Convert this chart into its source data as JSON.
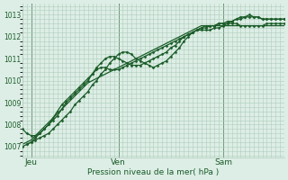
{
  "bg_color": "#ddeee6",
  "grid_color": "#b0ccbb",
  "line_color": "#1a5c28",
  "title": "Pression niveau de la mer( hPa )",
  "ylim": [
    1006.5,
    1013.5
  ],
  "yticks": [
    1007,
    1008,
    1009,
    1010,
    1011,
    1012,
    1013
  ],
  "xlim": [
    0,
    60
  ],
  "day_labels": [
    "Jeu",
    "Ven",
    "Sam"
  ],
  "day_positions": [
    2,
    22,
    46
  ],
  "vline_positions": [
    2,
    22,
    46
  ],
  "series": [
    {
      "x": [
        0,
        1,
        2,
        3,
        4,
        5,
        6,
        7,
        8,
        9,
        10,
        11,
        12,
        13,
        14,
        15,
        16,
        17,
        18,
        19,
        20,
        21,
        22,
        23,
        24,
        25,
        26,
        27,
        28,
        29,
        30,
        31,
        32,
        33,
        34,
        35,
        36,
        37,
        38,
        39,
        40,
        41,
        42,
        43,
        44,
        45,
        46,
        47,
        48,
        49,
        50,
        51,
        52,
        53,
        54,
        55,
        56,
        57,
        58,
        59,
        60
      ],
      "y": [
        1007.1,
        1007.2,
        1007.3,
        1007.5,
        1007.7,
        1007.9,
        1008.1,
        1008.3,
        1008.5,
        1008.7,
        1008.9,
        1009.1,
        1009.3,
        1009.5,
        1009.7,
        1009.9,
        1010.0,
        1010.1,
        1010.2,
        1010.3,
        1010.4,
        1010.5,
        1010.6,
        1010.7,
        1010.8,
        1010.9,
        1011.0,
        1011.1,
        1011.2,
        1011.3,
        1011.4,
        1011.5,
        1011.6,
        1011.7,
        1011.8,
        1011.9,
        1012.0,
        1012.1,
        1012.2,
        1012.3,
        1012.4,
        1012.5,
        1012.5,
        1012.5,
        1012.5,
        1012.5,
        1012.5,
        1012.5,
        1012.5,
        1012.5,
        1012.5,
        1012.5,
        1012.5,
        1012.5,
        1012.5,
        1012.5,
        1012.5,
        1012.5,
        1012.5,
        1012.5,
        1012.5
      ],
      "markers": false,
      "lw": 0.9
    },
    {
      "x": [
        0,
        1,
        2,
        3,
        4,
        5,
        6,
        7,
        8,
        9,
        10,
        11,
        12,
        13,
        14,
        15,
        16,
        17,
        18,
        19,
        20,
        21,
        22,
        23,
        24,
        25,
        26,
        27,
        28,
        29,
        30,
        31,
        32,
        33,
        34,
        35,
        36,
        37,
        38,
        39,
        40,
        41,
        42,
        43,
        44,
        45,
        46,
        47,
        48,
        49,
        50,
        51,
        52,
        53,
        54,
        55,
        56,
        57,
        58,
        59,
        60
      ],
      "y": [
        1007.0,
        1007.1,
        1007.2,
        1007.4,
        1007.6,
        1007.8,
        1008.0,
        1008.3,
        1008.6,
        1008.9,
        1009.1,
        1009.3,
        1009.5,
        1009.7,
        1009.9,
        1010.1,
        1010.3,
        1010.5,
        1010.6,
        1010.6,
        1010.5,
        1010.5,
        1010.5,
        1010.6,
        1010.7,
        1010.8,
        1010.9,
        1011.0,
        1011.1,
        1011.2,
        1011.3,
        1011.4,
        1011.5,
        1011.6,
        1011.7,
        1011.8,
        1011.9,
        1012.0,
        1012.1,
        1012.2,
        1012.3,
        1012.3,
        1012.3,
        1012.3,
        1012.4,
        1012.4,
        1012.5,
        1012.6,
        1012.6,
        1012.6,
        1012.5,
        1012.5,
        1012.5,
        1012.5,
        1012.5,
        1012.5,
        1012.6,
        1012.6,
        1012.6,
        1012.6,
        1012.6
      ],
      "markers": true,
      "lw": 0.9
    },
    {
      "x": [
        0,
        1,
        2,
        3,
        4,
        5,
        6,
        7,
        8,
        9,
        10,
        11,
        12,
        13,
        14,
        15,
        16,
        17,
        18,
        19,
        20,
        21,
        22,
        23,
        24,
        25,
        26,
        27,
        28,
        29,
        30,
        31,
        32,
        33,
        34,
        35,
        36,
        37,
        38,
        39,
        40,
        41,
        42,
        43,
        44,
        45,
        46,
        47,
        48,
        49,
        50,
        51,
        52,
        53,
        54,
        55,
        56,
        57,
        58,
        59,
        60
      ],
      "y": [
        1007.8,
        1007.6,
        1007.5,
        1007.5,
        1007.6,
        1007.8,
        1008.0,
        1008.2,
        1008.4,
        1008.7,
        1009.0,
        1009.2,
        1009.4,
        1009.6,
        1009.8,
        1010.0,
        1010.3,
        1010.6,
        1010.8,
        1011.0,
        1011.1,
        1011.1,
        1011.0,
        1010.9,
        1010.8,
        1010.7,
        1010.7,
        1010.7,
        1010.8,
        1010.9,
        1011.0,
        1011.1,
        1011.2,
        1011.3,
        1011.5,
        1011.6,
        1011.8,
        1012.0,
        1012.1,
        1012.2,
        1012.3,
        1012.4,
        1012.4,
        1012.5,
        1012.5,
        1012.6,
        1012.6,
        1012.7,
        1012.7,
        1012.8,
        1012.8,
        1012.9,
        1012.9,
        1012.9,
        1012.9,
        1012.8,
        1012.8,
        1012.8,
        1012.8,
        1012.8,
        1012.8
      ],
      "markers": true,
      "lw": 0.9
    },
    {
      "x": [
        1,
        2,
        3,
        4,
        5,
        6,
        7,
        8,
        9,
        10,
        11,
        12,
        13,
        14,
        15,
        16,
        17,
        18,
        19,
        20,
        21,
        22,
        23,
        24,
        25,
        26,
        27,
        28,
        29,
        30,
        31,
        32,
        33,
        34,
        35,
        36,
        37,
        38,
        39,
        40,
        41,
        42,
        43,
        44,
        45,
        46,
        47,
        48,
        49,
        50,
        51,
        52,
        53,
        54,
        55,
        56,
        57,
        58,
        59,
        60
      ],
      "y": [
        1007.1,
        1007.2,
        1007.3,
        1007.4,
        1007.5,
        1007.6,
        1007.8,
        1008.0,
        1008.2,
        1008.4,
        1008.6,
        1008.9,
        1009.1,
        1009.3,
        1009.5,
        1009.8,
        1010.0,
        1010.3,
        1010.5,
        1010.8,
        1011.0,
        1011.2,
        1011.3,
        1011.3,
        1011.2,
        1011.0,
        1010.9,
        1010.8,
        1010.7,
        1010.6,
        1010.7,
        1010.8,
        1010.9,
        1011.1,
        1011.3,
        1011.5,
        1011.8,
        1012.0,
        1012.2,
        1012.3,
        1012.4,
        1012.5,
        1012.5,
        1012.5,
        1012.6,
        1012.6,
        1012.6,
        1012.7,
        1012.8,
        1012.9,
        1012.9,
        1013.0,
        1012.9,
        1012.9,
        1012.8,
        1012.8,
        1012.8,
        1012.8,
        1012.8,
        1012.8
      ],
      "markers": true,
      "lw": 0.9
    }
  ]
}
